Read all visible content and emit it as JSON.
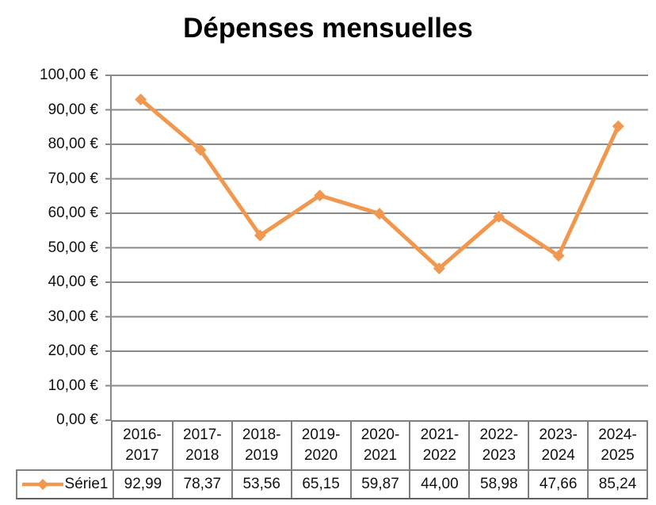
{
  "chart_data": {
    "type": "line",
    "title": "Dépenses mensuelles",
    "categories": [
      "2016-2017",
      "2017-2018",
      "2018-2019",
      "2019-2020",
      "2020-2021",
      "2021-2022",
      "2022-2023",
      "2023-2024",
      "2024-2025"
    ],
    "series": [
      {
        "name": "Série1",
        "values": [
          92.99,
          78.37,
          53.56,
          65.15,
          59.87,
          44.0,
          58.98,
          47.66,
          85.24
        ],
        "value_labels": [
          "92,99",
          "78,37",
          "53,56",
          "65,15",
          "59,87",
          "44,00",
          "58,98",
          "47,66",
          "85,24"
        ],
        "color": "#F09850",
        "marker": "diamond"
      }
    ],
    "ylim": [
      0,
      100
    ],
    "y_tick_step": 10,
    "y_tick_labels": [
      "0,00 €",
      "10,00 €",
      "20,00 €",
      "30,00 €",
      "40,00 €",
      "50,00 €",
      "60,00 €",
      "70,00 €",
      "80,00 €",
      "90,00 €",
      "100,00 €"
    ],
    "xlabel": "",
    "ylabel": "",
    "grid": true,
    "legend_position": "table-left",
    "colors": {
      "series": "#F09850",
      "gridline": "#898989",
      "axis": "#898989",
      "table_border": "#7f7f7f",
      "text": "#111111",
      "title": "#000000"
    }
  }
}
